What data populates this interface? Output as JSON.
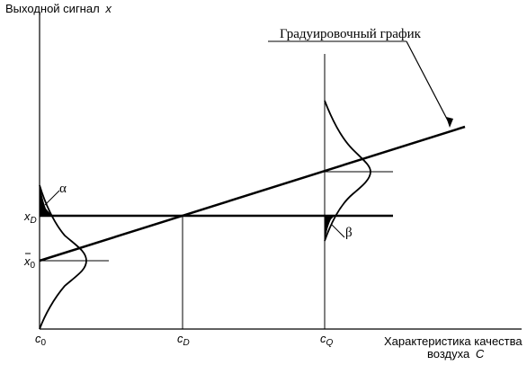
{
  "labels": {
    "y_axis": "Выходной сигнал",
    "y_axis_var": "x",
    "x_axis_line1": "Характеристика качества",
    "x_axis_line2_text": "воздуха",
    "x_axis_line2_var": "C",
    "calibration": "Градуировочный график",
    "alpha": "α",
    "beta": "β",
    "xD_main": "x",
    "xD_sub": "D",
    "x0_main": "x",
    "x0_sub": "0",
    "c0_main": "c",
    "c0_sub": "0",
    "cD_main": "c",
    "cD_sub": "D",
    "cQ_main": "c",
    "cQ_sub": "Q"
  }
}
